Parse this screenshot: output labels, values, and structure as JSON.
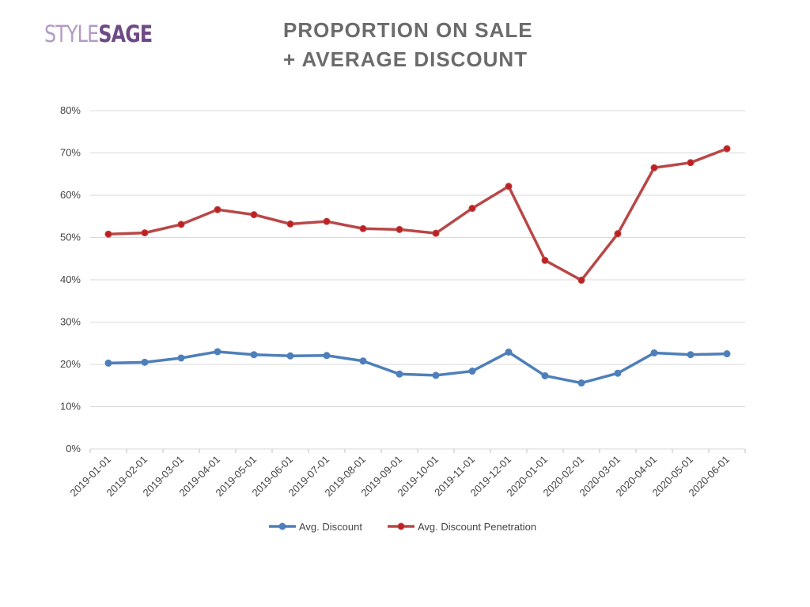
{
  "logo": {
    "part1": "STYLE",
    "part2": "SAGE"
  },
  "header": {
    "title_line1": "PROPORTION ON SALE",
    "title_line2": "+ AVERAGE DISCOUNT"
  },
  "colors": {
    "discount": "#4e7fba",
    "penetration": "#b94747",
    "discount_marker": "#4e7fba",
    "penetration_marker": "#c02020",
    "grid": "#d9d9d9"
  },
  "chart_data": {
    "type": "line",
    "title": "PROPORTION ON SALE + AVERAGE DISCOUNT",
    "xlabel": "",
    "ylabel": "",
    "categories": [
      "2019-01-01",
      "2019-02-01",
      "2019-03-01",
      "2019-04-01",
      "2019-05-01",
      "2019-06-01",
      "2019-07-01",
      "2019-08-01",
      "2019-09-01",
      "2019-10-01",
      "2019-11-01",
      "2019-12-01",
      "2020-01-01",
      "2020-02-01",
      "2020-03-01",
      "2020-04-01",
      "2020-05-01",
      "2020-06-01"
    ],
    "ylim": [
      0,
      80
    ],
    "yticks": [
      "0%",
      "10%",
      "20%",
      "30%",
      "40%",
      "50%",
      "60%",
      "70%",
      "80%"
    ],
    "grid": true,
    "legend_position": "bottom",
    "series": [
      {
        "name": "Avg. Discount",
        "values": [
          20.3,
          20.5,
          21.5,
          23.0,
          22.3,
          22.0,
          22.1,
          20.8,
          17.7,
          17.4,
          18.4,
          22.9,
          17.3,
          15.6,
          17.9,
          22.7,
          22.3,
          22.5
        ]
      },
      {
        "name": "Avg. Discount Penetration",
        "values": [
          50.8,
          51.1,
          53.1,
          56.6,
          55.4,
          53.2,
          53.8,
          52.1,
          51.9,
          51.0,
          56.9,
          62.1,
          44.6,
          39.9,
          50.9,
          66.5,
          67.7,
          71.0
        ]
      }
    ]
  }
}
